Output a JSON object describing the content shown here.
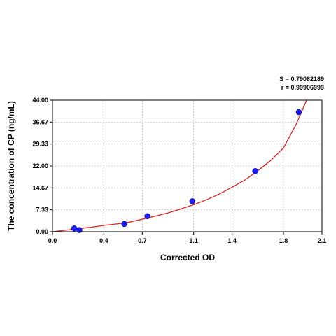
{
  "chart_data": {
    "type": "scatter",
    "xlabel": "Corrected OD",
    "ylabel": "The concentration of CP (ng/mL)",
    "xlim": [
      0.0,
      2.1
    ],
    "ylim": [
      0.0,
      44.0
    ],
    "x_ticks": [
      "0.0",
      "0.4",
      "0.7",
      "1.1",
      "1.4",
      "1.8",
      "2.1"
    ],
    "y_ticks": [
      "0.00",
      "7.33",
      "14.67",
      "22.00",
      "29.33",
      "36.67",
      "44.00"
    ],
    "grid": true,
    "stats": {
      "s_text": "S = 0.79082189",
      "r_text": "r = 0.99906999"
    },
    "series": [
      {
        "points": [
          {
            "x": 0.17,
            "y": 1.1
          },
          {
            "x": 0.21,
            "y": 0.55
          },
          {
            "x": 0.56,
            "y": 2.6
          },
          {
            "x": 0.74,
            "y": 5.2
          },
          {
            "x": 1.09,
            "y": 10.2
          },
          {
            "x": 1.58,
            "y": 20.3
          },
          {
            "x": 1.92,
            "y": 40.0
          }
        ]
      }
    ],
    "fit_curve": {
      "x": [
        0.0,
        0.1,
        0.2,
        0.3,
        0.4,
        0.5,
        0.6,
        0.7,
        0.8,
        0.9,
        1.0,
        1.1,
        1.2,
        1.3,
        1.4,
        1.5,
        1.6,
        1.7,
        1.8,
        1.9,
        2.0
      ],
      "y": [
        0.0,
        0.5,
        1.0,
        1.5,
        2.1,
        2.6,
        3.2,
        4.2,
        5.2,
        6.3,
        7.6,
        9.0,
        10.7,
        12.6,
        14.9,
        17.3,
        20.4,
        23.8,
        28.0,
        36.0,
        46.0
      ]
    },
    "colors": {
      "points": "#1a1aff",
      "curve": "#e02020",
      "grid": "#c8c8c8",
      "axis": "#000000"
    }
  }
}
